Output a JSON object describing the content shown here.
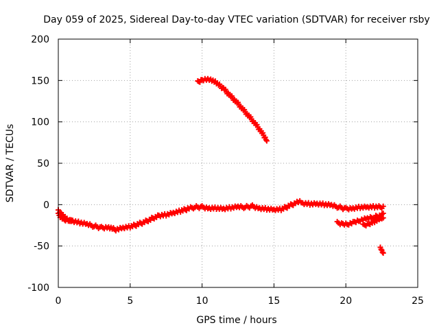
{
  "chart_data": {
    "type": "scatter",
    "title": "Day 059 of 2025, Sidereal Day-to-day VTEC variation (SDTVAR) for receiver rsby",
    "xlabel": "GPS time / hours",
    "ylabel": "SDTVAR / TECUs",
    "xlim": [
      0,
      25
    ],
    "ylim": [
      -100,
      200
    ],
    "xticks": [
      0,
      5,
      10,
      15,
      20,
      25
    ],
    "yticks": [
      -100,
      -50,
      0,
      50,
      100,
      150,
      200
    ],
    "grid": true,
    "legend": "none",
    "marker": "+",
    "series_color": "#ff0000",
    "series": [
      {
        "name": "arc-main",
        "x": [
          0,
          0.2,
          0.5,
          1.0,
          1.5,
          2.0,
          2.5,
          3.0,
          3.5,
          4.0,
          4.5,
          5.0,
          5.5,
          6.0,
          6.5,
          7.0,
          7.5,
          8.0,
          8.5,
          9.0,
          9.5,
          10.0,
          10.5,
          11.0,
          11.5,
          12.0,
          12.5,
          13.0,
          13.5,
          14.0,
          14.5,
          15.0,
          15.5,
          16.0,
          16.5,
          16.8,
          17.0,
          17.5,
          18.0,
          18.5,
          19.0,
          19.5,
          20.0,
          20.5,
          21.0,
          21.5,
          22.0,
          22.6
        ],
        "y": [
          -12,
          -15,
          -18,
          -20,
          -22,
          -24,
          -26,
          -28,
          -27,
          -30,
          -28,
          -27,
          -24,
          -21,
          -17,
          -13,
          -12,
          -10,
          -8,
          -5,
          -3,
          -3,
          -4,
          -4,
          -5,
          -4,
          -3,
          -3,
          -2,
          -4,
          -5,
          -6,
          -6,
          -2,
          2,
          3,
          2,
          1,
          1,
          0,
          -1,
          -3,
          -5,
          -4,
          -3,
          -3,
          -3,
          -3
        ]
      },
      {
        "name": "arc-start",
        "x": [
          0,
          0.2,
          0.4,
          0.6,
          0.8,
          1.0
        ],
        "y": [
          -8,
          -10,
          -14,
          -17,
          -19,
          -20
        ]
      },
      {
        "name": "arc-high",
        "x": [
          9.7,
          10.0,
          10.3,
          10.6,
          11.0,
          11.5,
          12.0,
          12.5,
          13.0,
          13.5,
          14.0,
          14.5
        ],
        "y": [
          148,
          151,
          152,
          151,
          147,
          140,
          131,
          122,
          112,
          102,
          91,
          78
        ]
      },
      {
        "name": "arc-late",
        "x": [
          19.4,
          19.8,
          20.2,
          20.6,
          21.0,
          21.5,
          22.0,
          22.6
        ],
        "y": [
          -22,
          -23,
          -23,
          -21,
          -19,
          -17,
          -15,
          -12
        ]
      },
      {
        "name": "arc-late-2",
        "x": [
          21.2,
          21.6,
          22.0,
          22.4,
          22.6
        ],
        "y": [
          -25,
          -23,
          -20,
          -17,
          -15
        ]
      },
      {
        "name": "arc-end",
        "x": [
          22.4,
          22.5,
          22.6
        ],
        "y": [
          -53,
          -55,
          -57
        ]
      }
    ]
  }
}
